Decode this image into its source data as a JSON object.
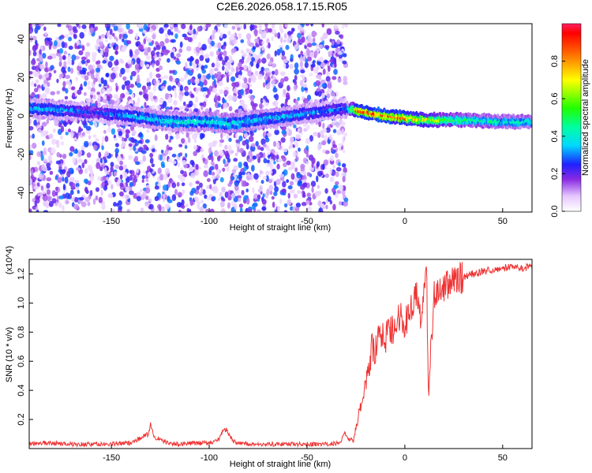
{
  "title": "C2E6.2026.058.17.15.R05",
  "chart_data": [
    {
      "type": "heatmap",
      "name": "spectrogram",
      "xlabel": "Height of straight line (km)",
      "ylabel": "Frequency (Hz)",
      "xlim": [
        -192,
        65
      ],
      "ylim": [
        -50,
        48
      ],
      "x_ticks": [
        -150,
        -100,
        -50,
        0,
        50
      ],
      "y_ticks": [
        -40,
        -20,
        0,
        20,
        40
      ],
      "colorbar": {
        "label": "Normalized spectral amplitude",
        "range": [
          0.0,
          1.0
        ],
        "ticks": [
          0.0,
          0.2,
          0.4,
          0.6,
          0.8
        ],
        "tick_labels": [
          "0.0",
          "0.2",
          "0.4",
          "0.6",
          "0.8"
        ]
      },
      "signal_track": {
        "x": [
          -192,
          -175,
          -160,
          -140,
          -120,
          -100,
          -90,
          -30,
          -25,
          -10,
          0,
          10,
          30,
          50,
          65
        ],
        "freq_hz": [
          4,
          3,
          2,
          0,
          -3,
          -3,
          -4,
          4,
          3,
          0,
          -1,
          -2,
          -2,
          -3,
          -3
        ],
        "peak_amplitude": [
          0.35,
          0.35,
          0.25,
          0.35,
          0.4,
          0.4,
          0.4,
          0.3,
          0.85,
          0.9,
          0.85,
          0.7,
          0.5,
          0.45,
          0.45
        ]
      },
      "noise_regions_x": [
        [
          -192,
          -30
        ]
      ]
    },
    {
      "type": "line",
      "name": "snr",
      "xlabel": "Height of straight line (km)",
      "ylabel": "SNR (10 * v/v)",
      "y_multiplier": "(x10^4)",
      "xlim": [
        -192,
        65
      ],
      "ylim": [
        0,
        1.3
      ],
      "x_ticks": [
        -150,
        -100,
        -50,
        0,
        50
      ],
      "y_ticks": [
        0.2,
        0.4,
        0.6,
        0.8,
        1.0,
        1.2
      ],
      "y_tick_labels": [
        "0.2",
        "0.4",
        "0.6",
        "0.8",
        "1.0",
        "1.2"
      ],
      "series": [
        {
          "name": "SNR",
          "color": "#ee3333",
          "x": [
            -192,
            -185,
            -170,
            -150,
            -140,
            -131,
            -130,
            -128,
            -120,
            -100,
            -95,
            -93,
            -91,
            -88,
            -80,
            -60,
            -40,
            -33,
            -31,
            -28,
            -26,
            -24,
            -22,
            -20,
            -18,
            -17,
            -15,
            -13,
            -10,
            -8,
            -5,
            -2,
            0,
            3,
            6,
            8,
            10,
            11,
            12,
            15,
            20,
            25,
            30,
            35,
            40,
            45,
            50,
            55,
            60,
            65
          ],
          "values": [
            0.03,
            0.04,
            0.03,
            0.03,
            0.04,
            0.1,
            0.17,
            0.08,
            0.03,
            0.04,
            0.06,
            0.12,
            0.13,
            0.05,
            0.03,
            0.03,
            0.03,
            0.04,
            0.11,
            0.05,
            0.07,
            0.2,
            0.3,
            0.45,
            0.55,
            0.7,
            0.65,
            0.8,
            0.75,
            0.85,
            0.8,
            0.95,
            0.85,
            0.98,
            1.05,
            0.9,
            1.1,
            1.3,
            0.4,
            1.05,
            1.12,
            1.15,
            1.18,
            1.2,
            1.22,
            1.23,
            1.24,
            1.25,
            1.24,
            1.25
          ]
        }
      ]
    }
  ]
}
